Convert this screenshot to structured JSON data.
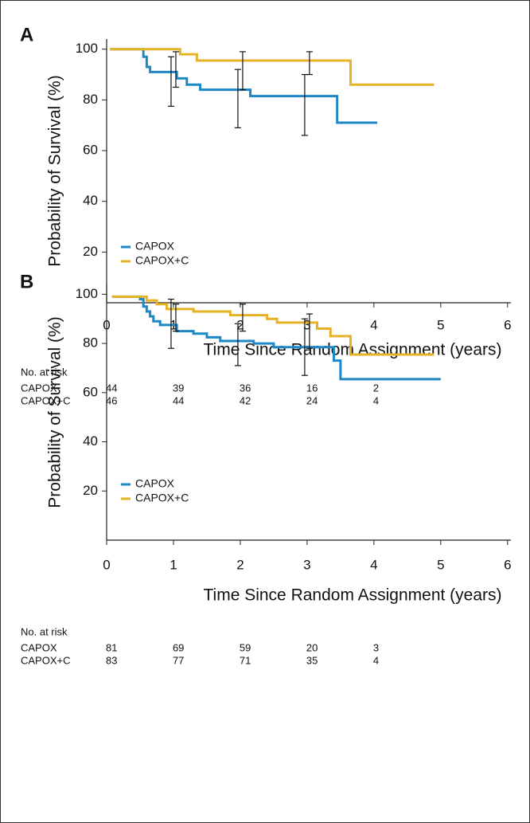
{
  "chart_data": [
    {
      "type": "line",
      "step": "post",
      "panel_label": "A",
      "y_label": "Probability of Survival (%)",
      "x_label": "Time Since Random Assignment (years)",
      "xlim": [
        0,
        6.05
      ],
      "ylim": [
        0,
        104
      ],
      "xticks": [
        0,
        1,
        2,
        3,
        4,
        5,
        6
      ],
      "yticks": [
        20,
        40,
        60,
        80,
        100
      ],
      "legend": "lower left",
      "series": [
        {
          "name": "CAPOX",
          "color": "#1c88c7",
          "x": [
            0.05,
            0.55,
            0.6,
            0.65,
            1.05,
            1.2,
            1.4,
            2.15,
            3.45,
            4.05
          ],
          "values": [
            100,
            97,
            93,
            91,
            88.5,
            86,
            84,
            81.5,
            71,
            71
          ],
          "error_bars": {
            "x": [
              1,
              2,
              3
            ],
            "lower": [
              77.5,
              69,
              66
            ],
            "upper": [
              97,
              92,
              90
            ]
          }
        },
        {
          "name": "CAPOX+C",
          "color": "#e6b325",
          "x": [
            0.05,
            1.1,
            1.35,
            3.65,
            4.9
          ],
          "values": [
            100,
            98,
            95.5,
            86,
            86
          ],
          "error_bars": {
            "x": [
              1,
              2,
              3
            ],
            "lower": [
              85,
              84,
              90
            ],
            "upper": [
              99,
              99,
              99
            ]
          }
        }
      ],
      "risk_table": {
        "title": "No. at risk",
        "rows": [
          {
            "name": "CAPOX",
            "values": [
              44,
              39,
              36,
              16,
              2
            ]
          },
          {
            "name": "CAPOX+C",
            "values": [
              46,
              44,
              42,
              24,
              4
            ]
          }
        ]
      }
    },
    {
      "type": "line",
      "step": "post",
      "panel_label": "B",
      "y_label": "Probability of Survival (%)",
      "x_label": "Time Since Random Assignment (years)",
      "xlim": [
        0,
        6.05
      ],
      "ylim": [
        0,
        104
      ],
      "xticks": [
        0,
        1,
        2,
        3,
        4,
        5,
        6
      ],
      "yticks": [
        20,
        40,
        60,
        80,
        100
      ],
      "legend": "lower left",
      "series": [
        {
          "name": "CAPOX",
          "color": "#1c88c7",
          "x": [
            0.08,
            0.5,
            0.55,
            0.6,
            0.65,
            0.7,
            0.8,
            1.05,
            1.3,
            1.5,
            1.7,
            2.2,
            2.5,
            3.4,
            3.5,
            5.0
          ],
          "values": [
            99,
            98,
            95,
            93,
            91,
            89,
            87.5,
            85,
            84,
            82.5,
            81,
            80,
            78.5,
            73,
            65.5,
            65.5
          ],
          "error_bars": {
            "x": [
              1,
              2,
              3
            ],
            "lower": [
              78,
              71,
              67
            ],
            "upper": [
              98,
              88,
              90
            ]
          }
        },
        {
          "name": "CAPOX+C",
          "color": "#e6b325",
          "x": [
            0.08,
            0.6,
            0.75,
            0.9,
            1.3,
            1.85,
            2.4,
            2.55,
            3.15,
            3.35,
            3.65,
            4.9
          ],
          "values": [
            99,
            97.5,
            96,
            94,
            93,
            91.5,
            90,
            88.5,
            86,
            83,
            75.5,
            75.5
          ],
          "error_bars": {
            "x": [
              1,
              2,
              3
            ],
            "lower": [
              85,
              85,
              78
            ],
            "upper": [
              96,
              96,
              92
            ]
          }
        }
      ],
      "risk_table": {
        "title": "No. at risk",
        "rows": [
          {
            "name": "CAPOX",
            "values": [
              81,
              69,
              59,
              20,
              3
            ]
          },
          {
            "name": "CAPOX+C",
            "values": [
              83,
              77,
              71,
              35,
              4
            ]
          }
        ]
      }
    }
  ]
}
